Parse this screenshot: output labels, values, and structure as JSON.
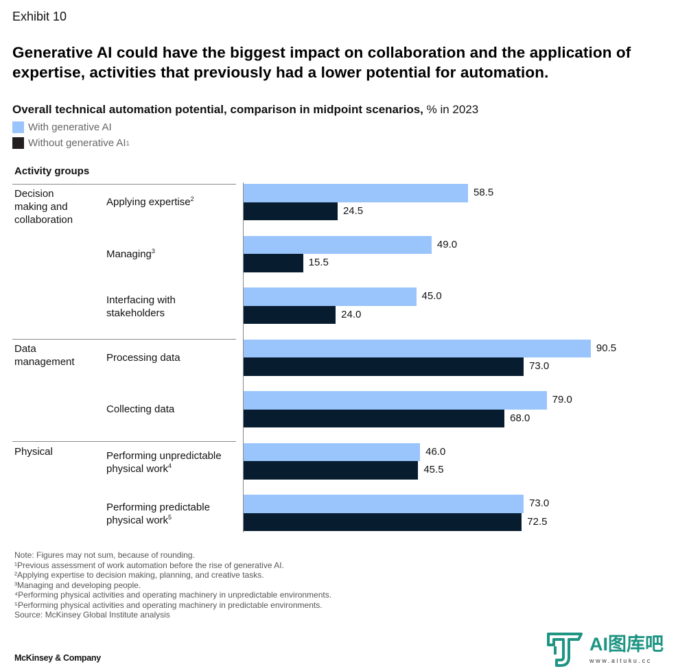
{
  "exhibit_label": "Exhibit 10",
  "headline": "Generative AI could have the biggest impact on collaboration and the application of expertise, activities that previously had a lower potential for automation.",
  "subtitle_bold": "Overall technical automation potential, comparison in midpoint scenarios,",
  "subtitle_unit": "% in 2023",
  "colors": {
    "with_gen_ai": "#9ac4fc",
    "without_gen_ai": "#071c2e",
    "legend_without_swatch": "#231f20",
    "divider": "#888888",
    "watermark": "#1e9483"
  },
  "activity_groups_header": "Activity groups",
  "groups": [
    {
      "label": "Decision making and collaboration"
    },
    {
      "label": "Data management"
    },
    {
      "label": "Physical"
    }
  ],
  "chart_data": {
    "type": "bar",
    "orientation": "horizontal",
    "title": "Overall technical automation potential, comparison in midpoint scenarios, % in 2023",
    "xlabel": "",
    "ylabel": "Activity groups",
    "xlim": [
      0,
      100
    ],
    "grid": false,
    "legend_position": "top-left",
    "categories": [
      {
        "label": "Applying expertise",
        "footnote": "2",
        "group": "Decision making and collaboration"
      },
      {
        "label": "Managing",
        "footnote": "3",
        "group": "Decision making and collaboration"
      },
      {
        "label": "Interfacing with stakeholders",
        "footnote": "",
        "group": "Decision making and collaboration"
      },
      {
        "label": "Processing data",
        "footnote": "",
        "group": "Data management"
      },
      {
        "label": "Collecting data",
        "footnote": "",
        "group": "Data management"
      },
      {
        "label": "Performing unpredictable physical work",
        "footnote": "4",
        "group": "Physical"
      },
      {
        "label": "Performing predictable physical work",
        "footnote": "5",
        "group": "Physical"
      }
    ],
    "series": [
      {
        "name": "With generative AI",
        "footnote": "",
        "values": [
          58.5,
          49.0,
          45.0,
          90.5,
          79.0,
          46.0,
          73.0
        ]
      },
      {
        "name": "Without generative AI",
        "footnote": "1",
        "values": [
          24.5,
          15.5,
          24.0,
          73.0,
          68.0,
          45.5,
          72.5
        ]
      }
    ]
  },
  "notes": [
    "Note: Figures may not sum, because of rounding.",
    "¹Previous assessment of work automation before the rise of generative AI.",
    "²Applying expertise to decision making, planning, and creative tasks.",
    "³Managing and developing people.",
    "⁴Performing physical activities and operating machinery in unpredictable environments.",
    "⁵Performing physical activities and operating machinery in predictable environments.",
    "Source: McKinsey Global Institute analysis"
  ],
  "brand": "McKinsey & Company",
  "watermark": {
    "title": "AI图库吧",
    "url": "www.aituku.cc",
    "icon": "t-logo-icon"
  }
}
